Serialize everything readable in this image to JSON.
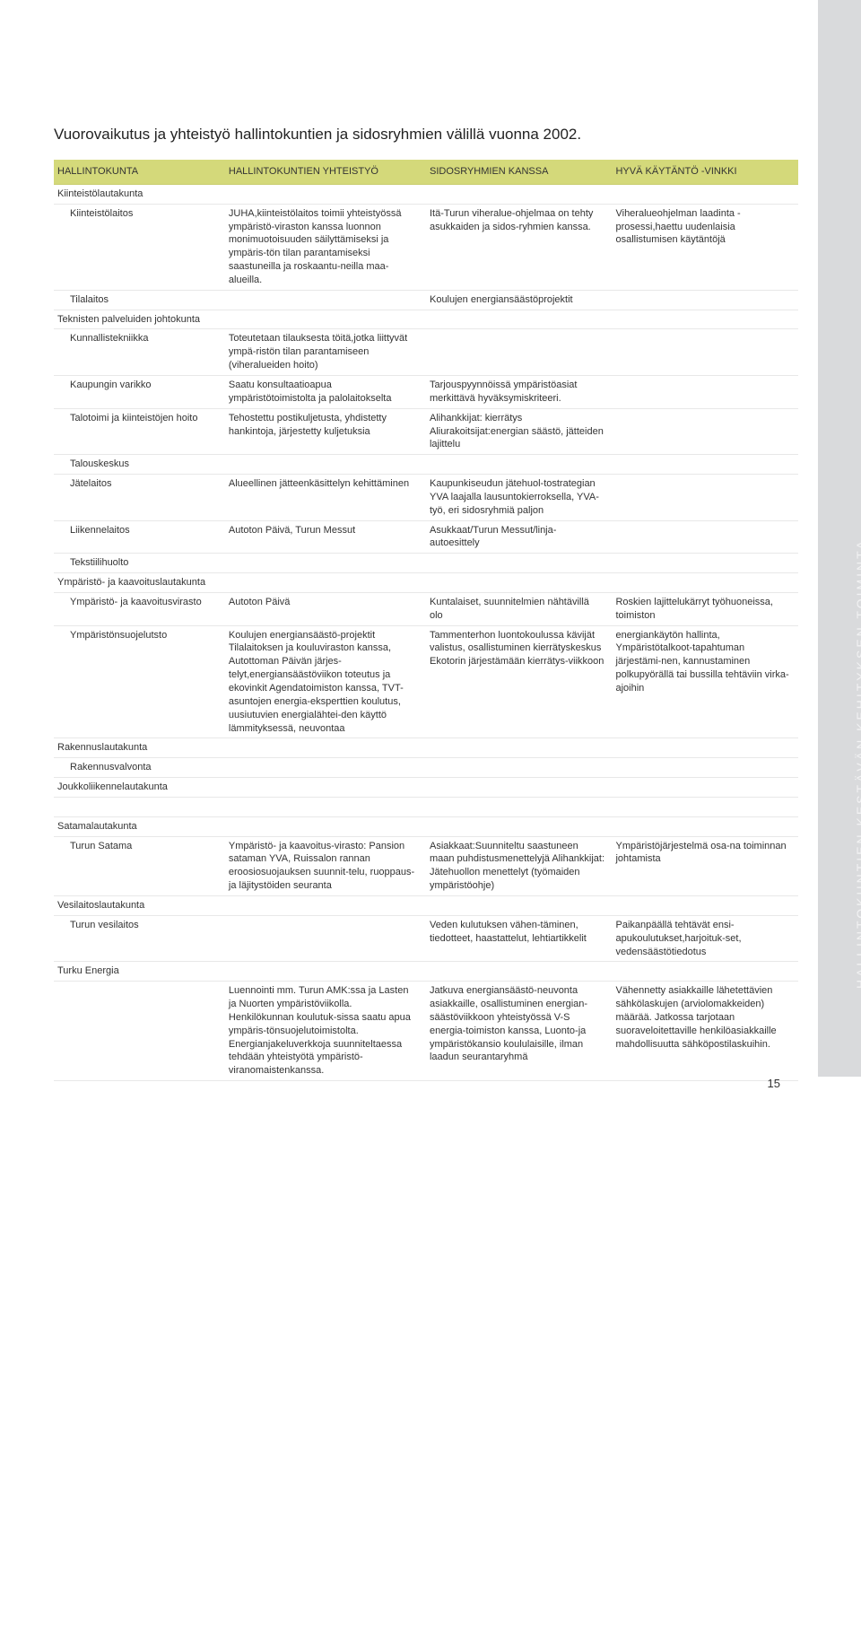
{
  "sideTab": "HALLINTOKUNTIEN KESTÄVÄN KEHITYKSEN TOIMINTA",
  "pageTitle": "Vuorovaikutus ja yhteistyö hallintokuntien ja sidosryhmien välillä vuonna  2002.",
  "headers": {
    "c1": "HALLINTOKUNTA",
    "c2": "HALLINTOKUNTIEN YHTEISTYÖ",
    "c3": "SIDOSRYHMIEN KANSSA",
    "c4": "HYVÄ KÄYTÄNTÖ -VINKKI"
  },
  "rows": [
    {
      "section": true,
      "c1": "Kiinteistölautakunta"
    },
    {
      "indent": true,
      "c1": "Kiinteistölaitos",
      "c2": "JUHA,kiinteistölaitos toimii yhteistyössä ympäristö-viraston kanssa luonnon monimuotoisuuden säilyttämiseksi ja ympäris-tön tilan parantamiseksi saastuneilla ja roskaantu-neilla maa-alueilla.",
      "c3": "Itä-Turun viheralue-ohjelmaa on tehty asukkaiden ja sidos-ryhmien kanssa.",
      "c4": "Viheralueohjelman laadinta -prosessi,haettu uudenlaisia osallistumisen käytäntöjä"
    },
    {
      "indent": true,
      "c1": "Tilalaitos",
      "c3": "Koulujen energiansäästöprojektit"
    },
    {
      "section": true,
      "c1": "Teknisten palveluiden johtokunta"
    },
    {
      "indent": true,
      "c1": "Kunnallistekniikka",
      "c2": "Toteutetaan tilauksesta töitä,jotka liittyvät ympä-ristön tilan parantamiseen (viheralueiden hoito)"
    },
    {
      "indent": true,
      "c1": "Kaupungin varikko",
      "c2": "Saatu konsultaatioapua ympäristötoimistolta ja palolaitokselta",
      "c3": "Tarjouspyynnöissä ympäristöasiat merkittävä hyväksymiskriteeri."
    },
    {
      "indent": true,
      "c1": "Talotoimi ja kiinteistöjen hoito",
      "c2": "Tehostettu postikuljetusta, yhdistetty hankintoja, järjestetty kuljetuksia",
      "c3": "Alihankkijat: kierrätys Aliurakoitsijat:energian säästö, jätteiden lajittelu"
    },
    {
      "indent": true,
      "c1": "Talouskeskus"
    },
    {
      "indent": true,
      "c1": "Jätelaitos",
      "c2": "Alueellinen jätteenkäsittelyn kehittäminen",
      "c3": "Kaupunkiseudun jätehuol-tostrategian YVA laajalla lausuntokierroksella, YVA-työ, eri sidosryhmiä paljon"
    },
    {
      "indent": true,
      "c1": "Liikennelaitos",
      "c2": "Autoton Päivä, Turun Messut",
      "c3": "Asukkaat/Turun Messut/linja-autoesittely"
    },
    {
      "indent": true,
      "c1": "Tekstiilihuolto"
    },
    {
      "section": true,
      "c1": "Ympäristö- ja kaavoituslautakunta"
    },
    {
      "indent": true,
      "c1": "Ympäristö- ja kaavoitusvirasto",
      "c2": "Autoton Päivä",
      "c3": "Kuntalaiset, suunnitelmien nähtävillä olo",
      "c4": "Roskien lajittelukärryt työhuoneissa, toimiston"
    },
    {
      "indent": true,
      "c1": "Ympäristönsuojelutsto",
      "c2": "Koulujen energiansäästö-projektit Tilalaitoksen ja kouluviraston kanssa, Autottoman Päivän järjes-telyt,energiansäästöviikon toteutus ja ekovinkit Agendatoimiston kanssa, TVT-asuntojen energia-eksperttien koulutus, uusiutuvien energialähtei-den käyttö lämmityksessä, neuvontaa",
      "c3": "Tammenterhon luontokoulussa kävijät valistus, osallistuminen kierrätyskeskus Ekotorin järjestämään kierrätys-viikkoon",
      "c4": "energiankäytön hallinta, Ympäristötalkoot-tapahtuman järjestämi-nen, kannustaminen polkupyörällä tai bussilla tehtäviin virka-ajoihin"
    },
    {
      "section": true,
      "c1": "Rakennuslautakunta"
    },
    {
      "indent": true,
      "c1": "Rakennusvalvonta"
    },
    {
      "section": true,
      "c1": "Joukkoliikennelautakunta"
    },
    {
      "blank": true
    },
    {
      "section": true,
      "c1": "Satamalautakunta"
    },
    {
      "indent": true,
      "c1": "Turun Satama",
      "c2": "Ympäristö- ja kaavoitus-virasto: Pansion sataman YVA, Ruissalon rannan eroosiosuojauksen suunnit-telu, ruoppaus- ja läjitystöiden seuranta",
      "c3": "Asiakkaat:Suunniteltu saastuneen maan puhdistusmenettelyjä Alihankkijat: Jätehuollon menettelyt (työmaiden ympäristöohje)",
      "c4": "Ympäristöjärjestelmä osa-na toiminnan johtamista"
    },
    {
      "section": true,
      "c1": "Vesilaitoslautakunta"
    },
    {
      "indent": true,
      "c1": "Turun vesilaitos",
      "c3": "Veden kulutuksen vähen-täminen, tiedotteet, haastattelut, lehtiartikkelit",
      "c4": "Paikanpäällä tehtävät ensi-apukoulutukset,harjoituk-set, vedensäästötiedotus"
    },
    {
      "section": true,
      "c1": "Turku Energia"
    },
    {
      "indent": true,
      "c1": "",
      "c2": "Luennointi mm. Turun AMK:ssa ja Lasten ja Nuorten ympäristöviikolla. Henkilökunnan koulutuk-sissa saatu apua ympäris-tönsuojelutoimistolta. Energianjakeluverkkoja suunniteltaessa tehdään yhteistyötä ympäristö-viranomaistenkanssa.",
      "c3": "Jatkuva energiansäästö-neuvonta asiakkaille, osallistuminen energian-säästöviikkoon yhteistyössä V-S energia-toimiston kanssa, Luonto-ja ympäristökansio koululaisille, ilman laadun seurantaryhmä",
      "c4": "Vähennetty asiakkaille lähetettävien sähkölaskujen (arviolomakkeiden) määrää. Jatkossa tarjotaan suoraveloitettaville henkilöasiakkaille mahdollisuutta sähköpostilaskuihin."
    }
  ],
  "pageNumber": "15"
}
